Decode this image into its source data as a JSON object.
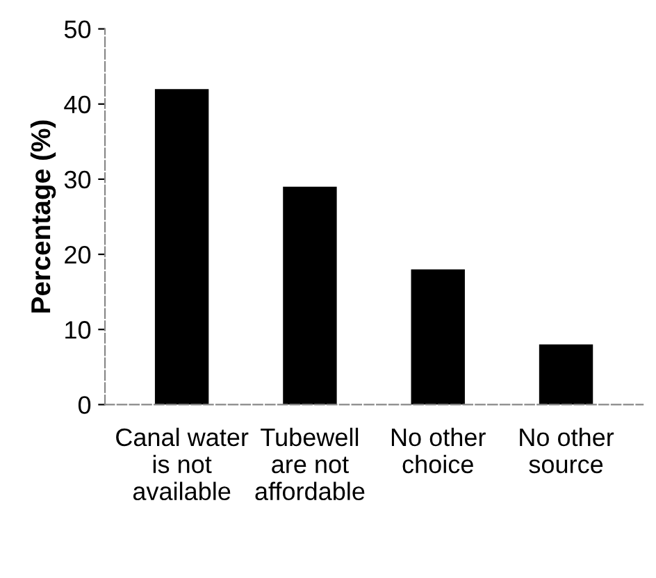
{
  "chart_data": {
    "type": "bar",
    "ylabel": "Percentage (%)",
    "categories": [
      "Canal water\nis not\navailable",
      "Tubewell\nare not\naffordable",
      "No other\nchoice",
      "No other\nsource"
    ],
    "values": [
      42,
      29,
      18,
      8
    ],
    "color": "#000000",
    "ylim": [
      0,
      50
    ],
    "yticks": [
      0,
      10,
      20,
      30,
      40,
      50
    ],
    "grid": false
  }
}
